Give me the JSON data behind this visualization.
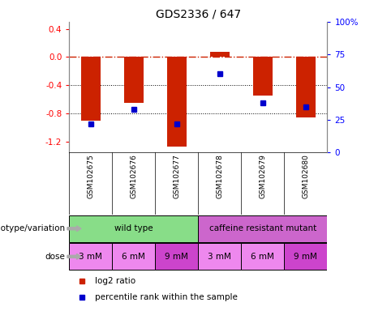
{
  "title": "GDS2336 / 647",
  "samples": [
    "GSM102675",
    "GSM102676",
    "GSM102677",
    "GSM102678",
    "GSM102679",
    "GSM102680"
  ],
  "log2_ratio": [
    -0.9,
    -0.65,
    -1.27,
    0.07,
    -0.55,
    -0.85
  ],
  "percentile_rank": [
    22,
    33,
    22,
    60,
    38,
    35
  ],
  "ylim_left": [
    -1.35,
    0.5
  ],
  "ylim_right": [
    0,
    100
  ],
  "bar_color": "#cc2200",
  "dot_color": "#0000cc",
  "hline_color": "#cc2200",
  "grid_color": "black",
  "genotype_groups": [
    {
      "label": "wild type",
      "span": [
        0,
        3
      ],
      "color": "#88dd88"
    },
    {
      "label": "caffeine resistant mutant",
      "span": [
        3,
        6
      ],
      "color": "#cc66cc"
    }
  ],
  "doses": [
    "3 mM",
    "6 mM",
    "9 mM",
    "3 mM",
    "6 mM",
    "9 mM"
  ],
  "dose_colors": [
    "#ee88ee",
    "#ee88ee",
    "#cc44cc",
    "#ee88ee",
    "#ee88ee",
    "#cc44cc"
  ],
  "legend_items": [
    {
      "label": "log2 ratio",
      "color": "#cc2200"
    },
    {
      "label": "percentile rank within the sample",
      "color": "#0000cc"
    }
  ],
  "left_label": "genotype/variation",
  "dose_label": "dose",
  "background_color": "#ffffff",
  "plot_bg": "#ffffff",
  "sample_bg": "#cccccc",
  "right_yticks": [
    0,
    25,
    50,
    75,
    100
  ],
  "right_yticklabels": [
    "0",
    "25",
    "50",
    "75",
    "100%"
  ],
  "left_yticks": [
    -1.2,
    -0.8,
    -0.4,
    0.0,
    0.4
  ],
  "bar_width": 0.45,
  "title_fontsize": 10
}
